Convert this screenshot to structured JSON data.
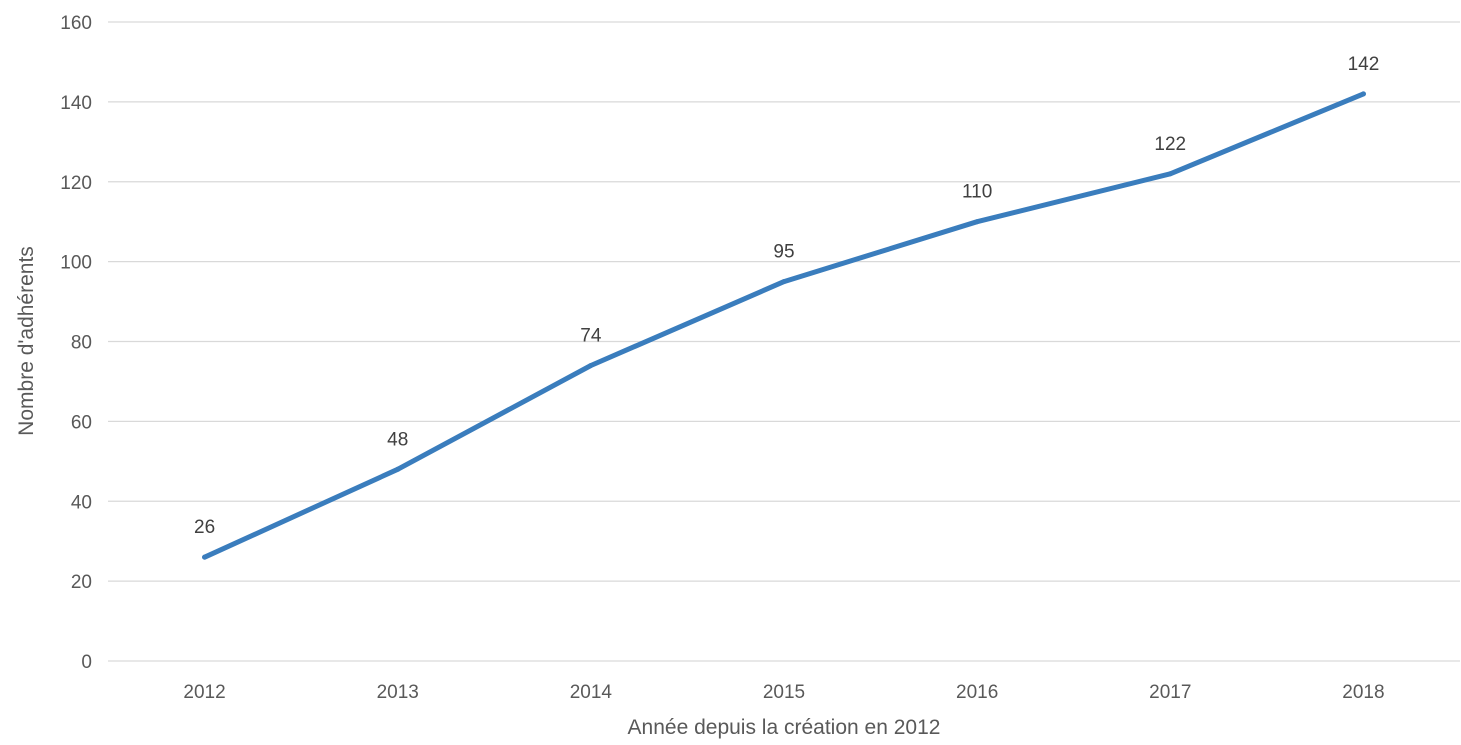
{
  "chart_data": {
    "type": "line",
    "title": "",
    "xlabel": "Année depuis la création en 2012",
    "ylabel": "Nombre d'adhérents",
    "categories": [
      "2012",
      "2013",
      "2014",
      "2015",
      "2016",
      "2017",
      "2018"
    ],
    "series": [
      {
        "values": [
          26,
          48,
          74,
          95,
          110,
          122,
          142
        ],
        "color": "#3a7dbd"
      }
    ],
    "ylim": [
      0,
      160
    ],
    "yticks": [
      0,
      20,
      40,
      60,
      80,
      100,
      120,
      140,
      160
    ],
    "data_labels": true,
    "grid": true,
    "legend": "none"
  }
}
